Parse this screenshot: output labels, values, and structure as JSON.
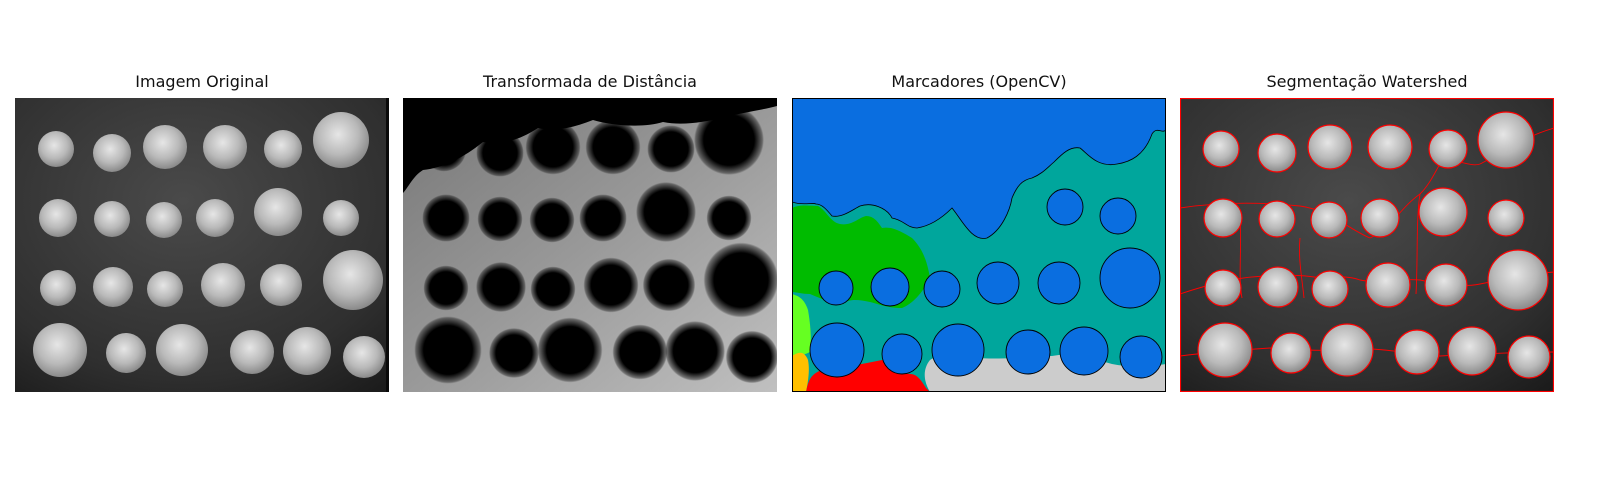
{
  "figure": {
    "panels": [
      {
        "title": "Imagem Original"
      },
      {
        "title": "Transformada de Distância"
      },
      {
        "title": "Marcadores (OpenCV)"
      },
      {
        "title": "Segmentação Watershed"
      }
    ]
  },
  "colors": {
    "marker_background_blue": "#0a6ee0",
    "marker_teal": "#00a69c",
    "marker_green": "#00bb00",
    "marker_lime": "#66ff22",
    "marker_yellow": "#ffc000",
    "marker_red": "#ff0000",
    "marker_gray": "#cccccc",
    "watershed_boundary": "#ff0000"
  }
}
